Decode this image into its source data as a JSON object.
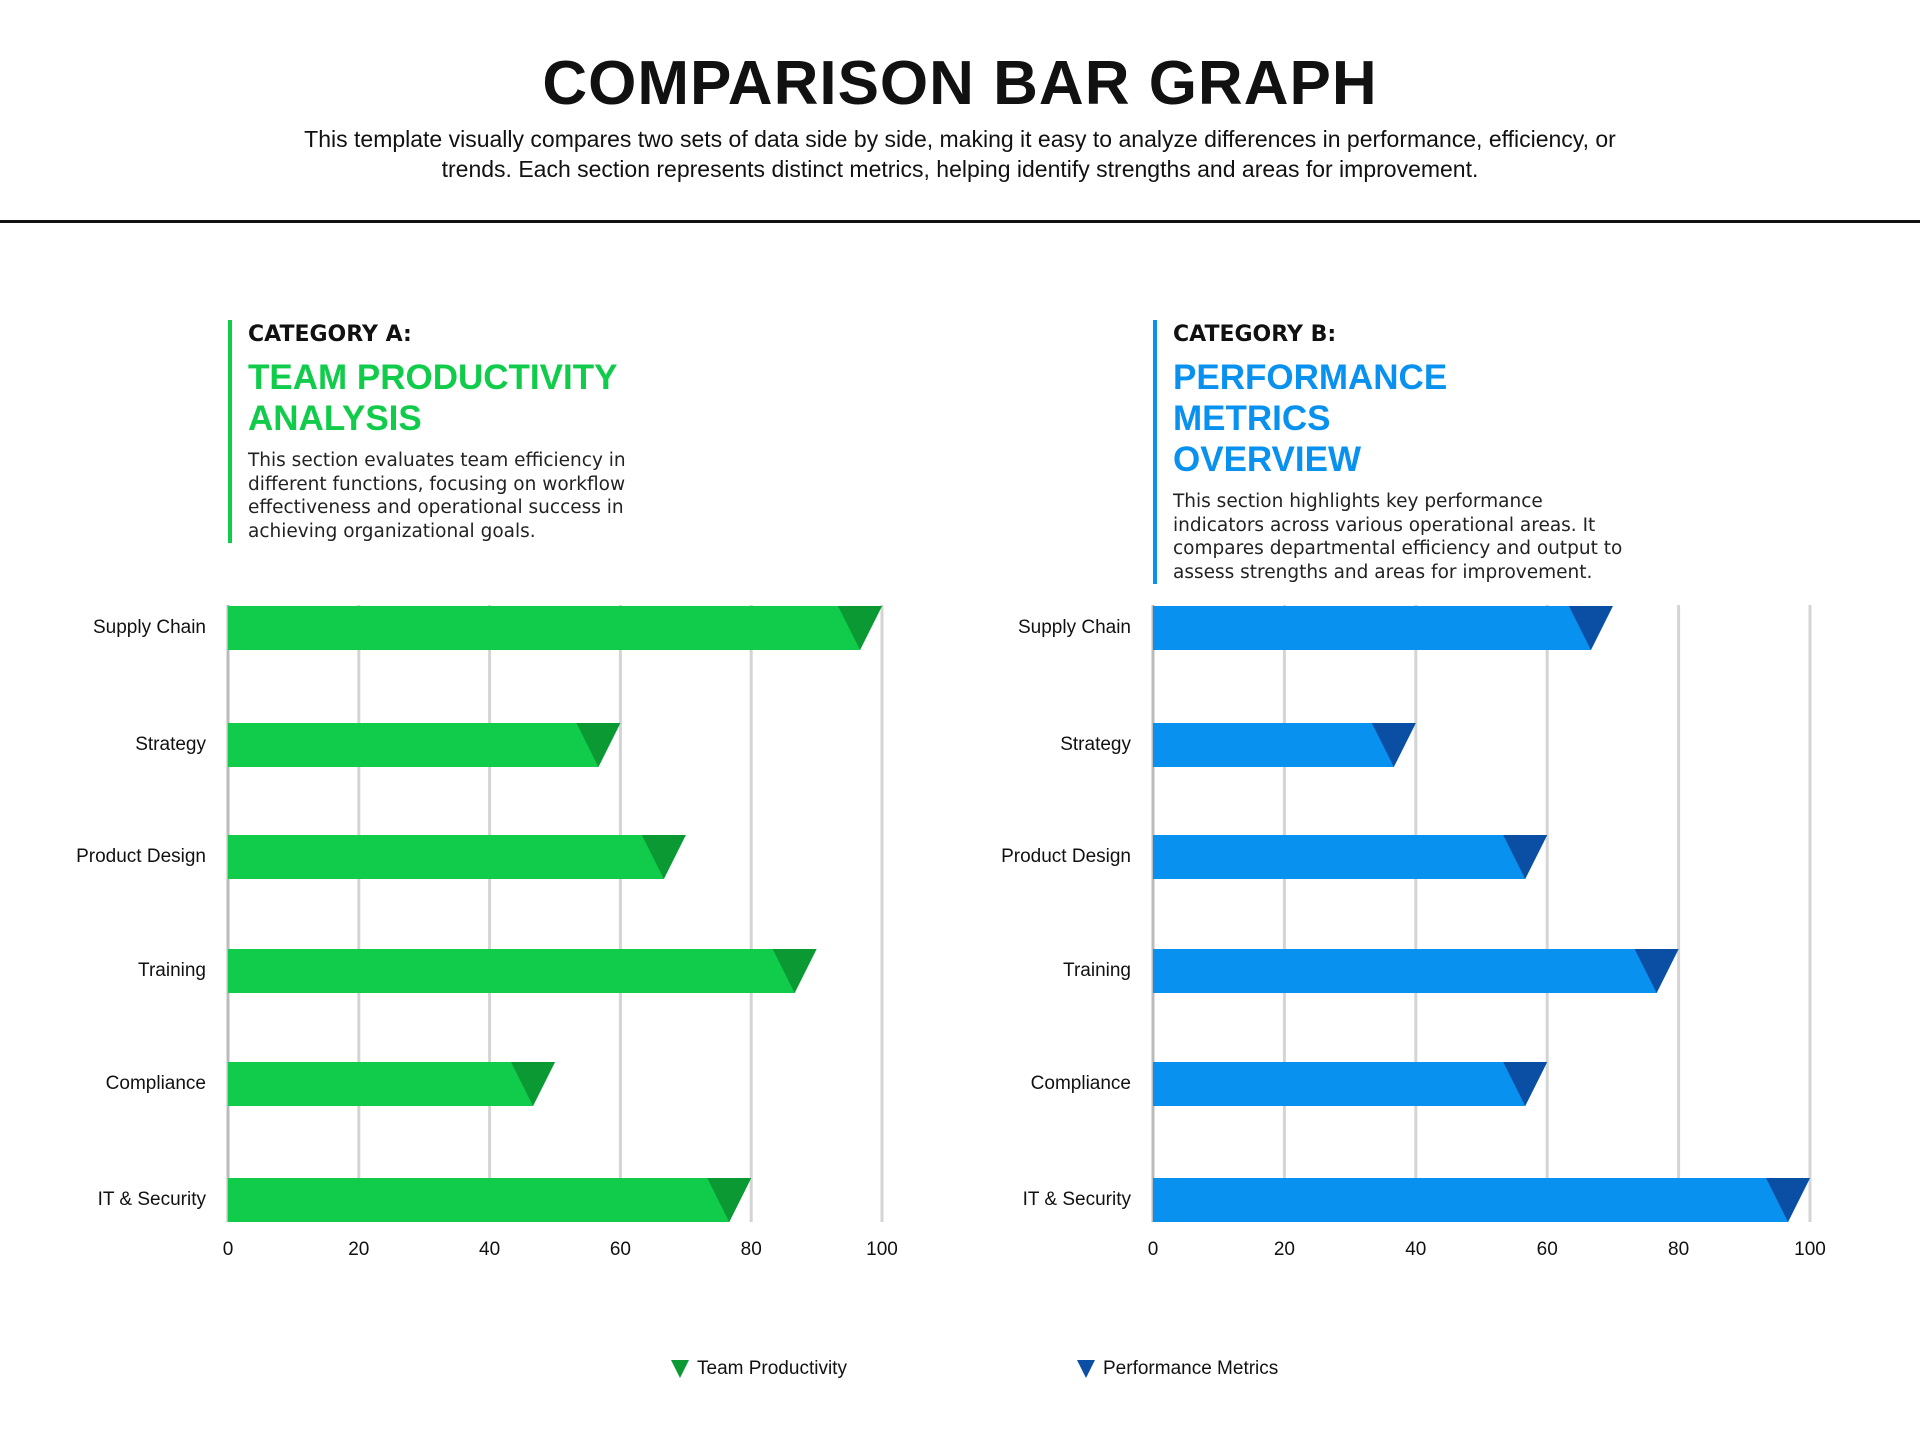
{
  "header": {
    "title": "COMPARISON BAR GRAPH",
    "subtitle": "This template visually compares two sets of data side by side, making it easy to analyze differences in performance, efficiency, or trends. Each section represents distinct metrics, helping identify strengths and areas for improvement."
  },
  "chart_data": [
    {
      "type": "bar",
      "label": "CATEGORY A:",
      "title": "TEAM PRODUCTIVITY ANALYSIS",
      "description": "This section evaluates team efficiency in different functions, focusing on workflow effectiveness and operational success in achieving organizational goals.",
      "categories": [
        "Supply Chain",
        "Strategy",
        "Product Design",
        "Training",
        "Compliance",
        "IT & Security"
      ],
      "series": [
        {
          "name": "Team Productivity",
          "color": "#10cc4a",
          "marker_color": "#0a9933",
          "values": [
            100,
            60,
            70,
            90,
            50,
            80
          ]
        }
      ],
      "xlim": [
        0,
        100
      ],
      "xticks": [
        0,
        20,
        40,
        60,
        80,
        100
      ],
      "grid": true
    },
    {
      "type": "bar",
      "label": "CATEGORY B:",
      "title": "PERFORMANCE METRICS OVERVIEW",
      "description": "This section highlights key performance indicators across various operational areas. It compares departmental efficiency and output to assess strengths and areas for improvement.",
      "categories": [
        "Supply Chain",
        "Strategy",
        "Product Design",
        "Training",
        "Compliance",
        "IT & Security"
      ],
      "series": [
        {
          "name": "Performance Metrics",
          "color": "#0891ef",
          "marker_color": "#0a4fa3",
          "values": [
            70,
            40,
            60,
            80,
            60,
            100
          ]
        }
      ],
      "xlim": [
        0,
        100
      ],
      "xticks": [
        0,
        20,
        40,
        60,
        80,
        100
      ],
      "grid": true
    }
  ]
}
